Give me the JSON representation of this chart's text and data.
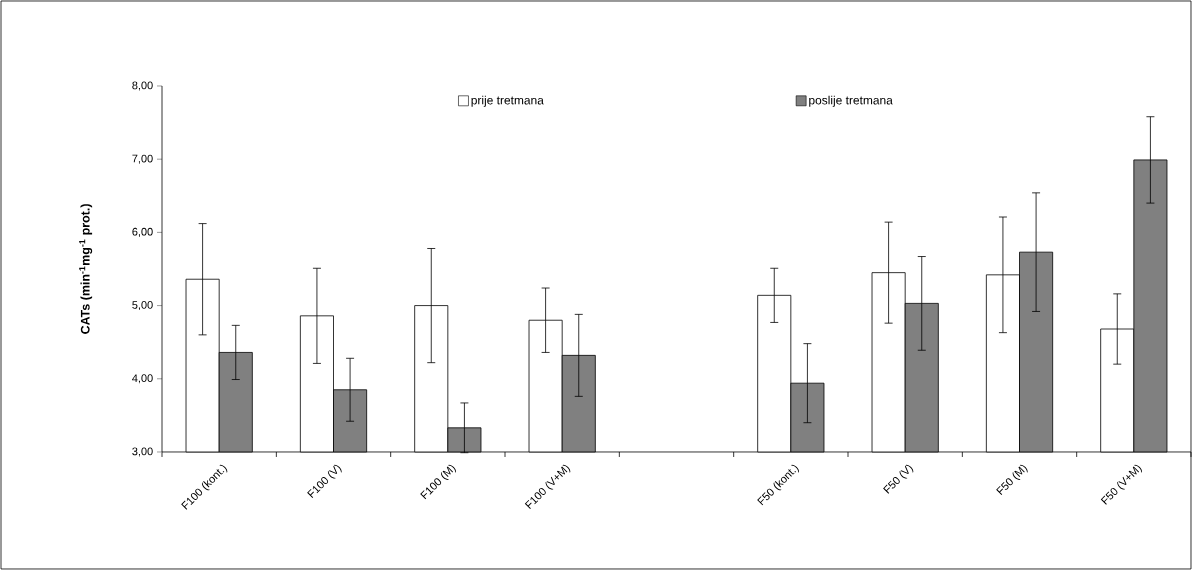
{
  "chart_data": {
    "type": "bar",
    "ylabel": "CATs (min$^{-1}$mg$^{-1}$ prot.)",
    "categories": [
      "F100 (kont.)",
      "F100 (V)",
      "F100 (M)",
      "F100 (V+M)",
      null,
      "F50 (kont.)",
      "F50 (V)",
      "F50 (M)",
      "F50 (V+M)"
    ],
    "series": [
      {
        "name": "prije tretmana",
        "color": "#ffffff",
        "values": [
          5.36,
          4.86,
          5.0,
          4.8,
          null,
          5.14,
          5.45,
          5.42,
          4.68
        ],
        "errors": [
          0.76,
          0.65,
          0.78,
          0.44,
          null,
          0.37,
          0.69,
          0.79,
          0.48
        ]
      },
      {
        "name": "poslije tretmana",
        "color": "#808080",
        "values": [
          4.36,
          3.85,
          3.33,
          4.32,
          null,
          3.94,
          5.03,
          5.73,
          6.99
        ],
        "errors": [
          0.37,
          0.43,
          0.34,
          0.56,
          null,
          0.54,
          0.64,
          0.81,
          0.59
        ]
      }
    ],
    "ylim": [
      3,
      8
    ],
    "yticks": [
      {
        "value": 3,
        "label": "3,00"
      },
      {
        "value": 4,
        "label": "4,00"
      },
      {
        "value": 5,
        "label": "5,00"
      },
      {
        "value": 6,
        "label": "6,00"
      },
      {
        "value": 7,
        "label": "7,00"
      },
      {
        "value": 8,
        "label": "8,00"
      }
    ],
    "legend": "top",
    "grid": false
  }
}
